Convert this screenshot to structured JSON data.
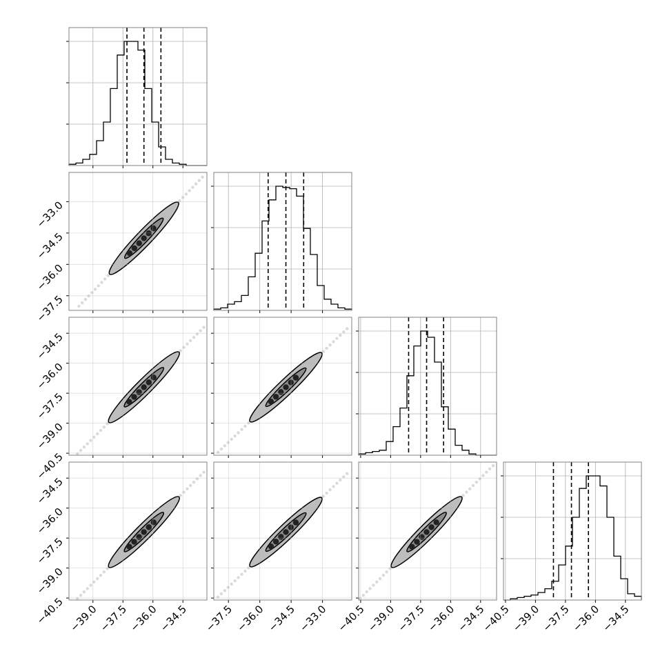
{
  "colors": {
    "line": "#000000",
    "grid": "#b0b0b0",
    "frame": "#808080",
    "contour_fill": "#bdbdbd",
    "contour_fill_inner": "#8c8c8c",
    "scatter": "#333333"
  },
  "chart_data": {
    "type": "corner",
    "grid": true,
    "parameters": [
      {
        "index": 0,
        "range": [
          -40.2,
          -33.3
        ],
        "ticks": [
          -39.0,
          -37.5,
          -36.0,
          -34.5
        ],
        "tick_labels": [
          "−39.0",
          "−37.5",
          "−36.0",
          "−34.5"
        ]
      },
      {
        "index": 1,
        "range": [
          -38.2,
          -31.6
        ],
        "ticks": [
          -37.5,
          -36.0,
          -34.5,
          -33.0
        ],
        "tick_labels": [
          "−37.5",
          "−36.0",
          "−34.5",
          "−33.0"
        ]
      },
      {
        "index": 2,
        "range": [
          -40.6,
          -33.7
        ],
        "ticks": [
          -40.5,
          -39.0,
          -37.5,
          -36.0,
          -34.5
        ],
        "tick_labels": [
          "−40.5",
          "−39.0",
          "−37.5",
          "−36.0",
          "−34.5"
        ]
      },
      {
        "index": 3,
        "range": [
          -40.6,
          -33.7
        ],
        "ticks": [
          -40.5,
          -39.0,
          -37.5,
          -36.0,
          -34.5
        ],
        "tick_labels": [
          "−40.5",
          "−39.0",
          "−37.5",
          "−36.0",
          "−34.5"
        ]
      }
    ],
    "histograms": [
      {
        "param": 0,
        "bins": 20,
        "range": [
          -40.2,
          -33.3
        ],
        "counts": [
          1,
          2,
          5,
          9,
          20,
          35,
          62,
          89,
          100,
          100,
          93,
          62,
          35,
          15,
          5,
          2,
          1,
          0,
          0,
          0
        ],
        "quantiles": [
          -37.3,
          -36.45,
          -35.6
        ]
      },
      {
        "param": 1,
        "bins": 20,
        "range": [
          -38.2,
          -31.6
        ],
        "counts": [
          1,
          2,
          5,
          7,
          12,
          27,
          46,
          72,
          89,
          100,
          99,
          98,
          92,
          66,
          45,
          20,
          9,
          5,
          2,
          1
        ],
        "quantiles": [
          -35.6,
          -34.75,
          -33.9
        ]
      },
      {
        "param": 2,
        "bins": 20,
        "range": [
          -40.6,
          -33.7
        ],
        "counts": [
          1,
          2,
          3,
          4,
          11,
          23,
          38,
          64,
          88,
          100,
          95,
          75,
          39,
          21,
          8,
          4,
          1,
          0,
          0,
          0
        ],
        "quantiles": [
          -38.1,
          -37.2,
          -36.35
        ]
      },
      {
        "param": 3,
        "bins": 20,
        "range": [
          -40.6,
          -33.7
        ],
        "counts": [
          0,
          1,
          2,
          3,
          4,
          6,
          9,
          15,
          28,
          43,
          66,
          89,
          99,
          99,
          91,
          66,
          35,
          17,
          5,
          3
        ],
        "quantiles": [
          -38.1,
          -37.2,
          -36.35
        ]
      }
    ],
    "pairs": [
      {
        "x_param": 0,
        "y_param": 1,
        "center": [
          -36.45,
          -34.75
        ]
      },
      {
        "x_param": 0,
        "y_param": 2,
        "center": [
          -36.45,
          -37.2
        ]
      },
      {
        "x_param": 1,
        "y_param": 2,
        "center": [
          -34.75,
          -37.2
        ]
      },
      {
        "x_param": 0,
        "y_param": 3,
        "center": [
          -36.45,
          -37.2
        ]
      },
      {
        "x_param": 1,
        "y_param": 3,
        "center": [
          -34.75,
          -37.2
        ]
      },
      {
        "x_param": 2,
        "y_param": 3,
        "center": [
          -37.2,
          -37.2
        ]
      }
    ]
  }
}
